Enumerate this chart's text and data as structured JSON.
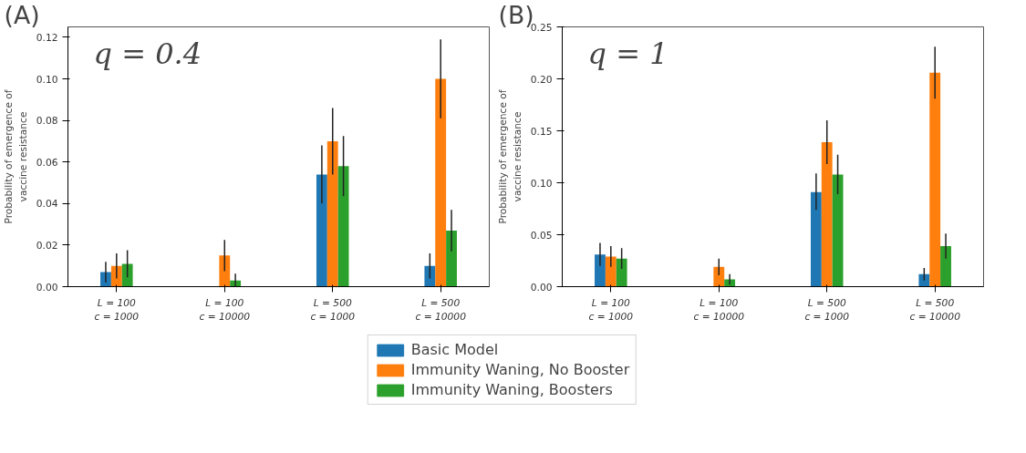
{
  "chart_data": [
    {
      "type": "bar",
      "annotations": [
        "(A)",
        "q = 0.4"
      ],
      "ylabel": "Probability of emergence of\nvaccine resistance",
      "categories": [
        "L = 100\nc = 1000",
        "L = 100\nc = 10000",
        "L = 500\nc = 1000",
        "L = 500\nc = 10000"
      ],
      "ylim": [
        0,
        0.125
      ],
      "yticks": [
        {
          "value": 0,
          "label": "0.00"
        },
        {
          "value": 0.02,
          "label": "0.02"
        },
        {
          "value": 0.04,
          "label": "0.04"
        },
        {
          "value": 0.06,
          "label": "0.06"
        },
        {
          "value": 0.08,
          "label": "0.08"
        },
        {
          "value": 0.1,
          "label": "0.10"
        },
        {
          "value": 0.12,
          "label": "0.12"
        }
      ],
      "legend": "bottom",
      "series": [
        {
          "name": "Basic Model",
          "color": "#1f77b4",
          "values": [
            0.007,
            0,
            0.054,
            0.01
          ],
          "errors": [
            [
              0.002,
              0.012
            ],
            null,
            [
              0.04,
              0.068
            ],
            [
              0.004,
              0.016
            ]
          ]
        },
        {
          "name": "Immunity Waning, No Booster",
          "color": "#ff7f0e",
          "values": [
            0.01,
            0.015,
            0.07,
            0.1
          ],
          "errors": [
            [
              0.004,
              0.016
            ],
            [
              0.0075,
              0.0225
            ],
            [
              0.054,
              0.086
            ],
            [
              0.081,
              0.119
            ]
          ]
        },
        {
          "name": "Immunity Waning, Boosters",
          "color": "#2ca02c",
          "values": [
            0.011,
            0.003,
            0.058,
            0.027
          ],
          "errors": [
            [
              0.0045,
              0.0175
            ],
            [
              0,
              0.0063
            ],
            [
              0.0435,
              0.0725
            ],
            [
              0.017,
              0.037
            ]
          ]
        }
      ]
    },
    {
      "type": "bar",
      "annotations": [
        "(B)",
        "q = 1"
      ],
      "ylabel": "Probability of emergence of\nvaccine resistance",
      "categories": [
        "L = 100\nc = 1000",
        "L = 100\nc = 10000",
        "L = 500\nc = 1000",
        "L = 500\nc = 10000"
      ],
      "ylim": [
        0,
        0.25
      ],
      "yticks": [
        {
          "value": 0,
          "label": "0.00"
        },
        {
          "value": 0.05,
          "label": "0.05"
        },
        {
          "value": 0.1,
          "label": "0.10"
        },
        {
          "value": 0.15,
          "label": "0.15"
        },
        {
          "value": 0.2,
          "label": "0.20"
        },
        {
          "value": 0.25,
          "label": "0.25"
        }
      ],
      "series": [
        {
          "color": "#1f77b4",
          "values": [
            0.031,
            0,
            0.091,
            0.012
          ],
          "errors": [
            [
              0.02,
              0.042
            ],
            null,
            [
              0.074,
              0.109
            ],
            [
              0.006,
              0.018
            ]
          ]
        },
        {
          "color": "#ff7f0e",
          "values": [
            0.029,
            0.019,
            0.139,
            0.206
          ],
          "errors": [
            [
              0.019,
              0.039
            ],
            [
              0.011,
              0.027
            ],
            [
              0.118,
              0.16
            ],
            [
              0.181,
              0.231
            ]
          ]
        },
        {
          "color": "#2ca02c",
          "values": [
            0.027,
            0.007,
            0.108,
            0.039
          ],
          "errors": [
            [
              0.017,
              0.037
            ],
            [
              0.002,
              0.012
            ],
            [
              0.089,
              0.127
            ],
            [
              0.027,
              0.051
            ]
          ]
        }
      ]
    }
  ]
}
